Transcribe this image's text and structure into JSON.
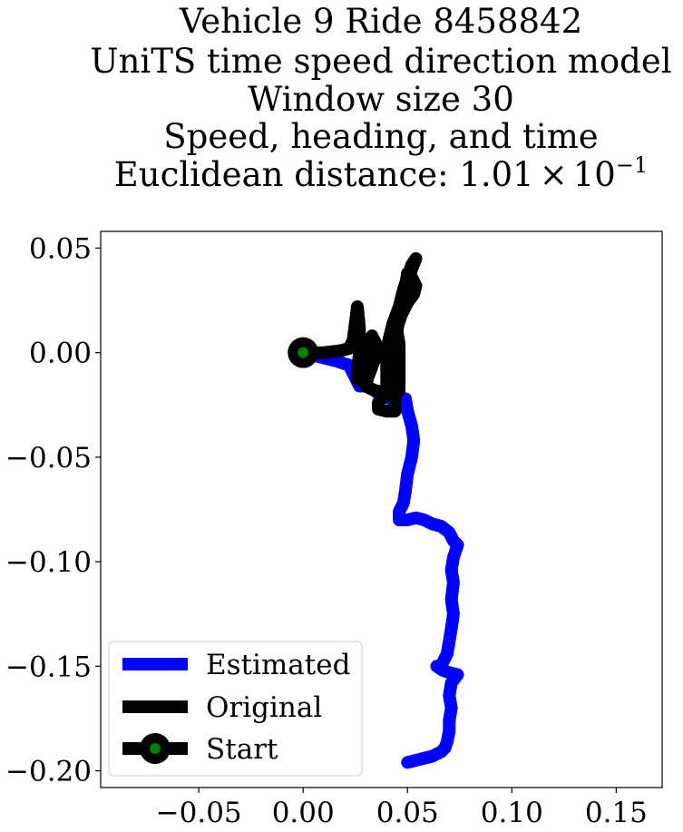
{
  "chart_data": {
    "type": "line",
    "title_lines": [
      "Vehicle 9 Ride 8458842",
      "UniTS time speed direction model",
      "Window size 30",
      "Speed, heading, and time"
    ],
    "title_distance": {
      "prefix": "Euclidean distance: ",
      "mantissa": "1.01",
      "times": "×",
      "base": "10",
      "exponent": "−1"
    },
    "xlabel": "",
    "ylabel": "",
    "xlim": [
      -0.097,
      0.172
    ],
    "ylim": [
      -0.208,
      0.058
    ],
    "x_ticks": [
      -0.05,
      0.0,
      0.05,
      0.1,
      0.15
    ],
    "x_tick_labels": [
      "−0.05",
      "0.00",
      "0.05",
      "0.10",
      "0.15"
    ],
    "y_ticks": [
      0.05,
      0.0,
      -0.05,
      -0.1,
      -0.15,
      -0.2
    ],
    "y_tick_labels": [
      "0.05",
      "0.00",
      "−0.05",
      "−0.10",
      "−0.15",
      "−0.20"
    ],
    "grid": false,
    "legend_position": "lower-left",
    "series": [
      {
        "name": "Estimated",
        "color": "#0000ff",
        "points": [
          [
            0.0,
            0.0
          ],
          [
            0.008,
            -0.002
          ],
          [
            0.016,
            -0.004
          ],
          [
            0.022,
            -0.006
          ],
          [
            0.025,
            -0.012
          ],
          [
            0.027,
            -0.016
          ],
          [
            0.03,
            -0.016
          ],
          [
            0.034,
            -0.018
          ],
          [
            0.038,
            -0.021
          ],
          [
            0.042,
            -0.022
          ],
          [
            0.046,
            -0.023
          ],
          [
            0.049,
            -0.022
          ],
          [
            0.05,
            -0.028
          ],
          [
            0.052,
            -0.035
          ],
          [
            0.053,
            -0.042
          ],
          [
            0.052,
            -0.05
          ],
          [
            0.05,
            -0.058
          ],
          [
            0.049,
            -0.066
          ],
          [
            0.048,
            -0.072
          ],
          [
            0.046,
            -0.076
          ],
          [
            0.046,
            -0.08
          ],
          [
            0.05,
            -0.08
          ],
          [
            0.054,
            -0.079
          ],
          [
            0.058,
            -0.08
          ],
          [
            0.062,
            -0.082
          ],
          [
            0.066,
            -0.083
          ],
          [
            0.07,
            -0.086
          ],
          [
            0.072,
            -0.09
          ],
          [
            0.074,
            -0.092
          ],
          [
            0.072,
            -0.098
          ],
          [
            0.071,
            -0.104
          ],
          [
            0.072,
            -0.11
          ],
          [
            0.071,
            -0.118
          ],
          [
            0.072,
            -0.125
          ],
          [
            0.071,
            -0.132
          ],
          [
            0.07,
            -0.138
          ],
          [
            0.069,
            -0.144
          ],
          [
            0.066,
            -0.15
          ],
          [
            0.064,
            -0.15
          ],
          [
            0.067,
            -0.152
          ],
          [
            0.07,
            -0.153
          ],
          [
            0.074,
            -0.154
          ],
          [
            0.071,
            -0.158
          ],
          [
            0.07,
            -0.164
          ],
          [
            0.071,
            -0.17
          ],
          [
            0.07,
            -0.176
          ],
          [
            0.07,
            -0.181
          ],
          [
            0.069,
            -0.186
          ],
          [
            0.068,
            -0.189
          ],
          [
            0.066,
            -0.191
          ],
          [
            0.062,
            -0.193
          ],
          [
            0.058,
            -0.194
          ],
          [
            0.054,
            -0.195
          ],
          [
            0.05,
            -0.196
          ]
        ]
      },
      {
        "name": "Original",
        "color": "#000000",
        "points": [
          [
            0.0,
            0.0
          ],
          [
            0.01,
            0.0
          ],
          [
            0.018,
            0.001
          ],
          [
            0.022,
            0.002
          ],
          [
            0.024,
            0.006
          ],
          [
            0.025,
            0.014
          ],
          [
            0.026,
            0.022
          ],
          [
            0.027,
            0.012
          ],
          [
            0.027,
            0.0
          ],
          [
            0.026,
            -0.008
          ],
          [
            0.026,
            -0.013
          ],
          [
            0.03,
            -0.012
          ],
          [
            0.032,
            -0.006
          ],
          [
            0.032,
            0.004
          ],
          [
            0.033,
            0.008
          ],
          [
            0.035,
            0.004
          ],
          [
            0.034,
            -0.004
          ],
          [
            0.031,
            -0.012
          ],
          [
            0.03,
            -0.016
          ],
          [
            0.034,
            -0.018
          ],
          [
            0.038,
            -0.019
          ],
          [
            0.041,
            -0.02
          ],
          [
            0.04,
            -0.012
          ],
          [
            0.04,
            -0.004
          ],
          [
            0.041,
            0.006
          ],
          [
            0.043,
            0.014
          ],
          [
            0.046,
            0.022
          ],
          [
            0.048,
            0.03
          ],
          [
            0.05,
            0.036
          ],
          [
            0.052,
            0.042
          ],
          [
            0.054,
            0.045
          ],
          [
            0.052,
            0.04
          ],
          [
            0.05,
            0.034
          ],
          [
            0.049,
            0.028
          ],
          [
            0.047,
            0.022
          ],
          [
            0.045,
            0.016
          ],
          [
            0.043,
            0.01
          ],
          [
            0.042,
            0.0
          ],
          [
            0.041,
            -0.008
          ],
          [
            0.04,
            -0.014
          ],
          [
            0.04,
            -0.018
          ],
          [
            0.038,
            -0.021
          ],
          [
            0.036,
            -0.024
          ],
          [
            0.036,
            -0.027
          ],
          [
            0.04,
            -0.028
          ],
          [
            0.044,
            -0.028
          ],
          [
            0.044,
            -0.024
          ],
          [
            0.044,
            -0.016
          ],
          [
            0.044,
            -0.006
          ],
          [
            0.044,
            0.004
          ],
          [
            0.045,
            0.012
          ],
          [
            0.047,
            0.018
          ],
          [
            0.05,
            0.024
          ],
          [
            0.053,
            0.028
          ],
          [
            0.054,
            0.032
          ],
          [
            0.052,
            0.036
          ],
          [
            0.05,
            0.038
          ],
          [
            0.049,
            0.032
          ],
          [
            0.048,
            0.026
          ],
          [
            0.046,
            0.018
          ],
          [
            0.045,
            0.01
          ],
          [
            0.046,
            0.004
          ],
          [
            0.046,
            -0.004
          ],
          [
            0.046,
            -0.012
          ],
          [
            0.046,
            -0.018
          ],
          [
            0.044,
            -0.02
          ],
          [
            0.041,
            -0.019
          ]
        ]
      }
    ],
    "start": {
      "name": "Start",
      "point": [
        0.0,
        0.0
      ],
      "outer_color": "#000000",
      "inner_color": "#008000"
    }
  }
}
